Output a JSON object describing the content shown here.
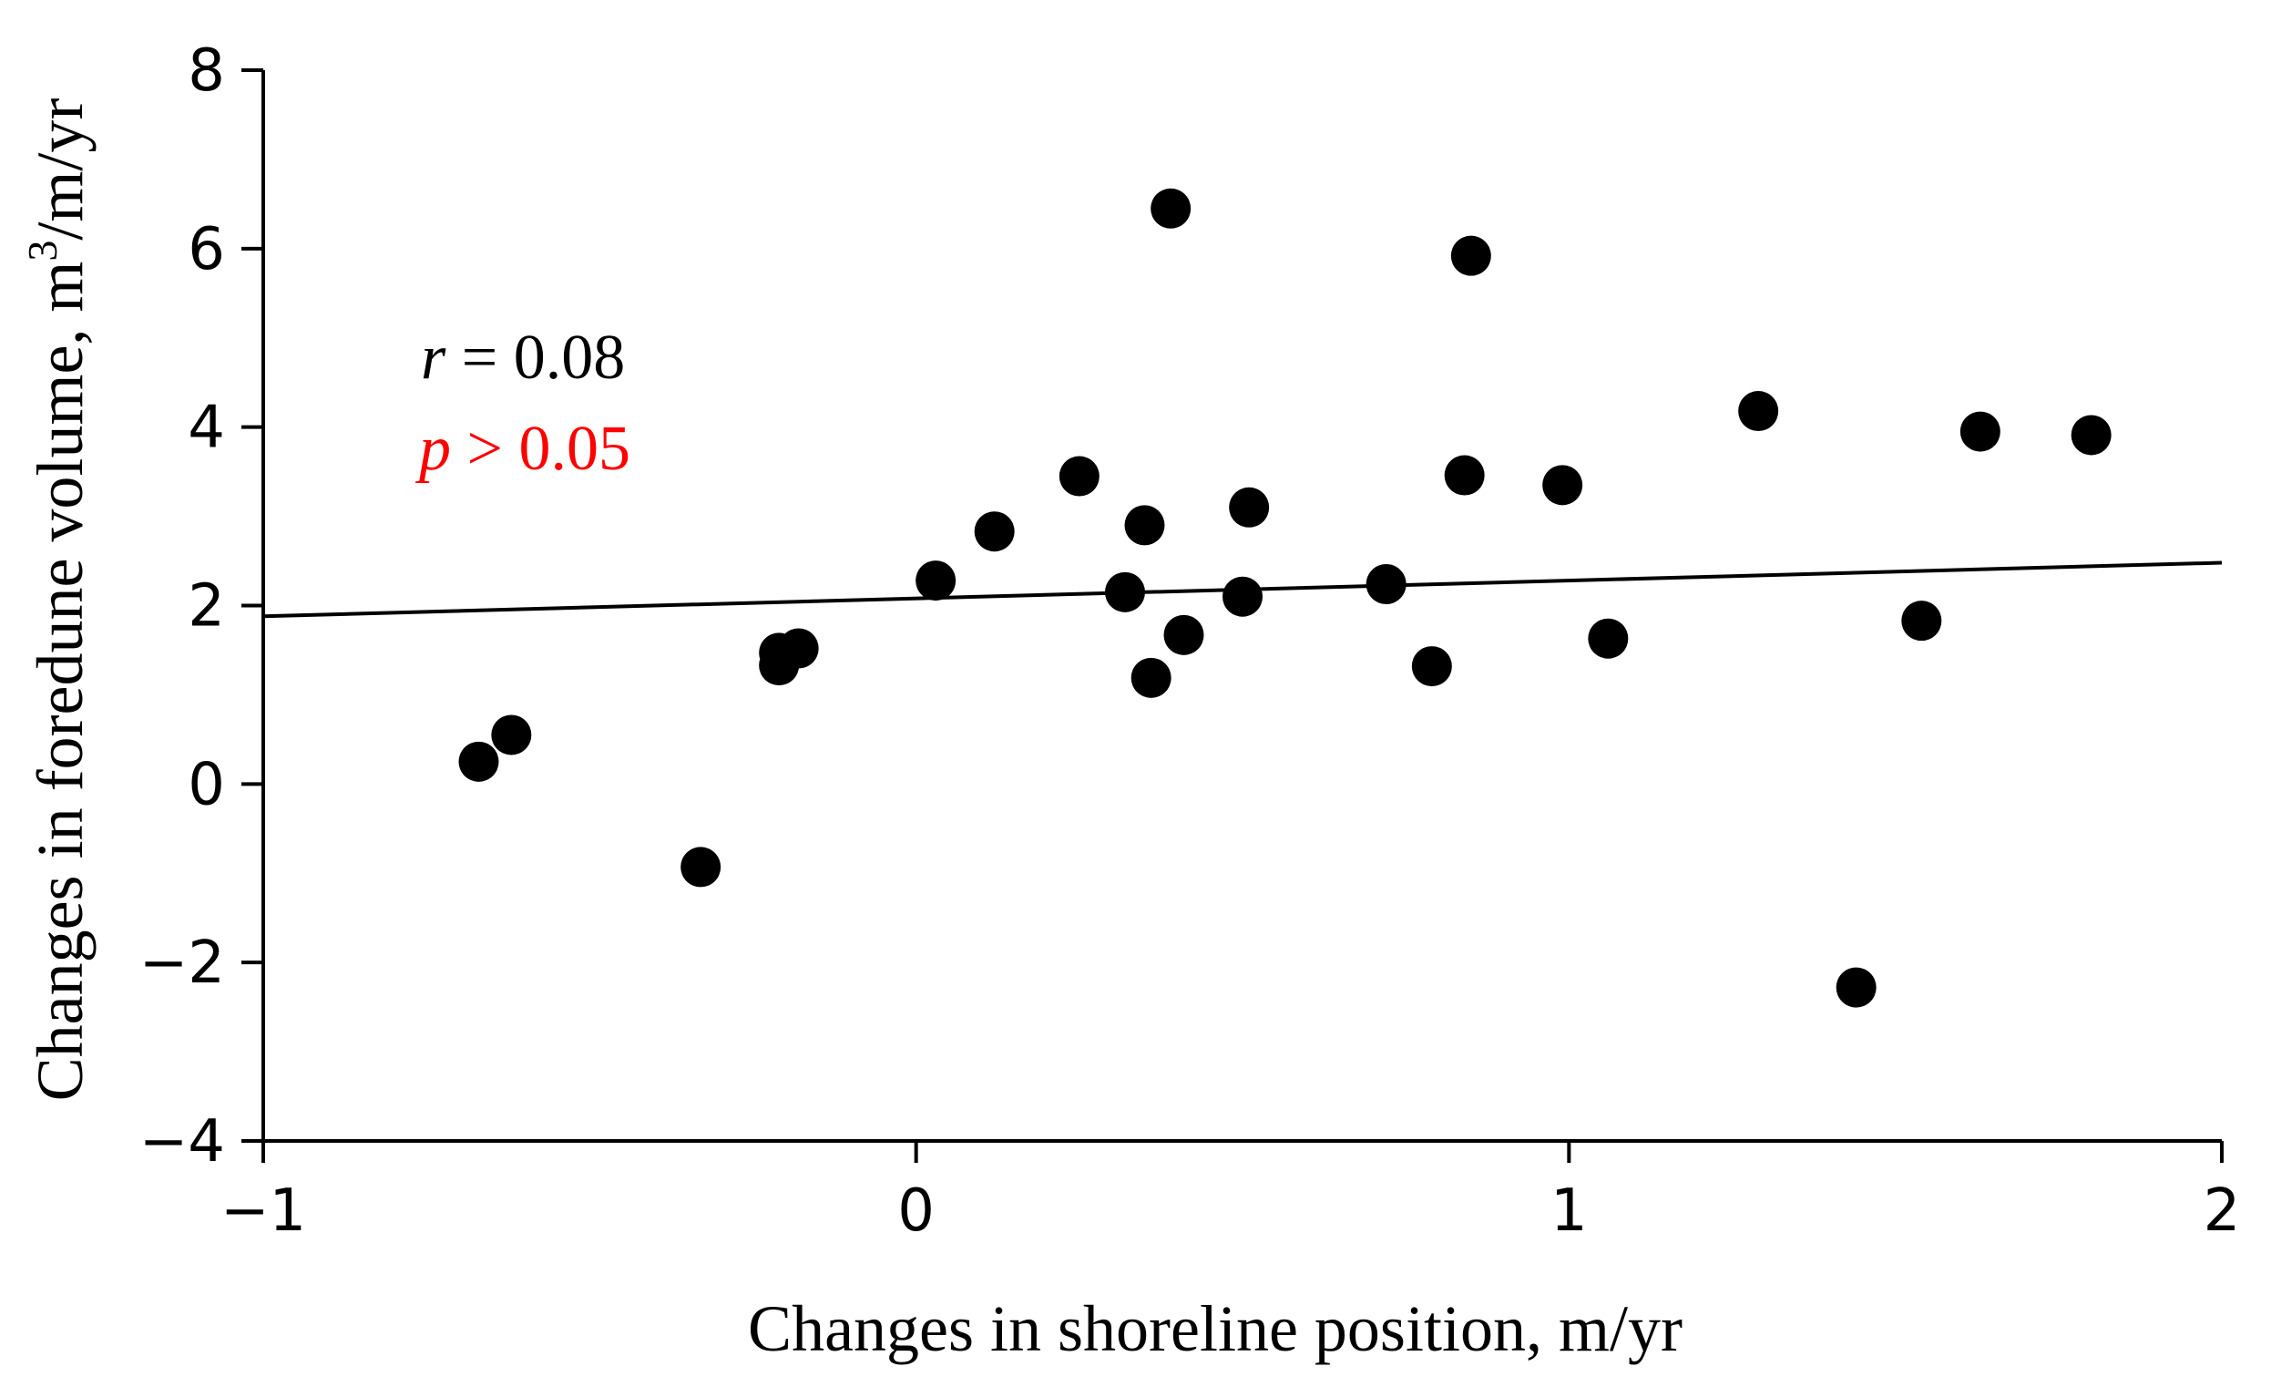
{
  "chart_data": {
    "type": "scatter",
    "xlabel": "Changes in shoreline position, m/yr",
    "ylabel_prefix": "Changes in foredune volume, m",
    "ylabel_superscript": "3",
    "ylabel_suffix": "/m/yr",
    "xlim": [
      -1,
      2
    ],
    "ylim": [
      -4,
      8
    ],
    "x_ticks": [
      -1,
      0,
      1,
      2
    ],
    "x_tick_labels": [
      "−1",
      "0",
      "1",
      "2"
    ],
    "y_ticks": [
      -4,
      -2,
      0,
      2,
      4,
      6,
      8
    ],
    "y_tick_labels": [
      "−4",
      "−2",
      "0",
      "2",
      "4",
      "6",
      "8"
    ],
    "grid": false,
    "legend": "none",
    "point_color": "#000000",
    "points": [
      {
        "x": -0.67,
        "y": 0.25
      },
      {
        "x": -0.62,
        "y": 0.55
      },
      {
        "x": -0.33,
        "y": -0.93
      },
      {
        "x": -0.21,
        "y": 1.47
      },
      {
        "x": -0.21,
        "y": 1.33
      },
      {
        "x": -0.18,
        "y": 1.52
      },
      {
        "x": 0.03,
        "y": 2.28
      },
      {
        "x": 0.12,
        "y": 2.83
      },
      {
        "x": 0.25,
        "y": 3.45
      },
      {
        "x": 0.32,
        "y": 2.15
      },
      {
        "x": 0.35,
        "y": 2.9
      },
      {
        "x": 0.36,
        "y": 1.19
      },
      {
        "x": 0.39,
        "y": 6.45
      },
      {
        "x": 0.41,
        "y": 1.67
      },
      {
        "x": 0.5,
        "y": 2.1
      },
      {
        "x": 0.51,
        "y": 3.1
      },
      {
        "x": 0.72,
        "y": 2.24
      },
      {
        "x": 0.79,
        "y": 1.32
      },
      {
        "x": 0.84,
        "y": 3.46
      },
      {
        "x": 0.85,
        "y": 5.92
      },
      {
        "x": 0.99,
        "y": 3.35
      },
      {
        "x": 1.06,
        "y": 1.63
      },
      {
        "x": 1.29,
        "y": 4.18
      },
      {
        "x": 1.44,
        "y": -2.28
      },
      {
        "x": 1.54,
        "y": 1.83
      },
      {
        "x": 1.63,
        "y": 3.95
      },
      {
        "x": 1.8,
        "y": 3.91
      }
    ],
    "trendline": {
      "x": [
        -1,
        2
      ],
      "y": [
        1.88,
        2.48
      ]
    },
    "annotations": {
      "r_symbol": "r",
      "r_text": " = 0.08",
      "r_color": "#000000",
      "p_symbol": "p",
      "p_text": " > 0.05",
      "p_color": "#ff0000"
    }
  }
}
